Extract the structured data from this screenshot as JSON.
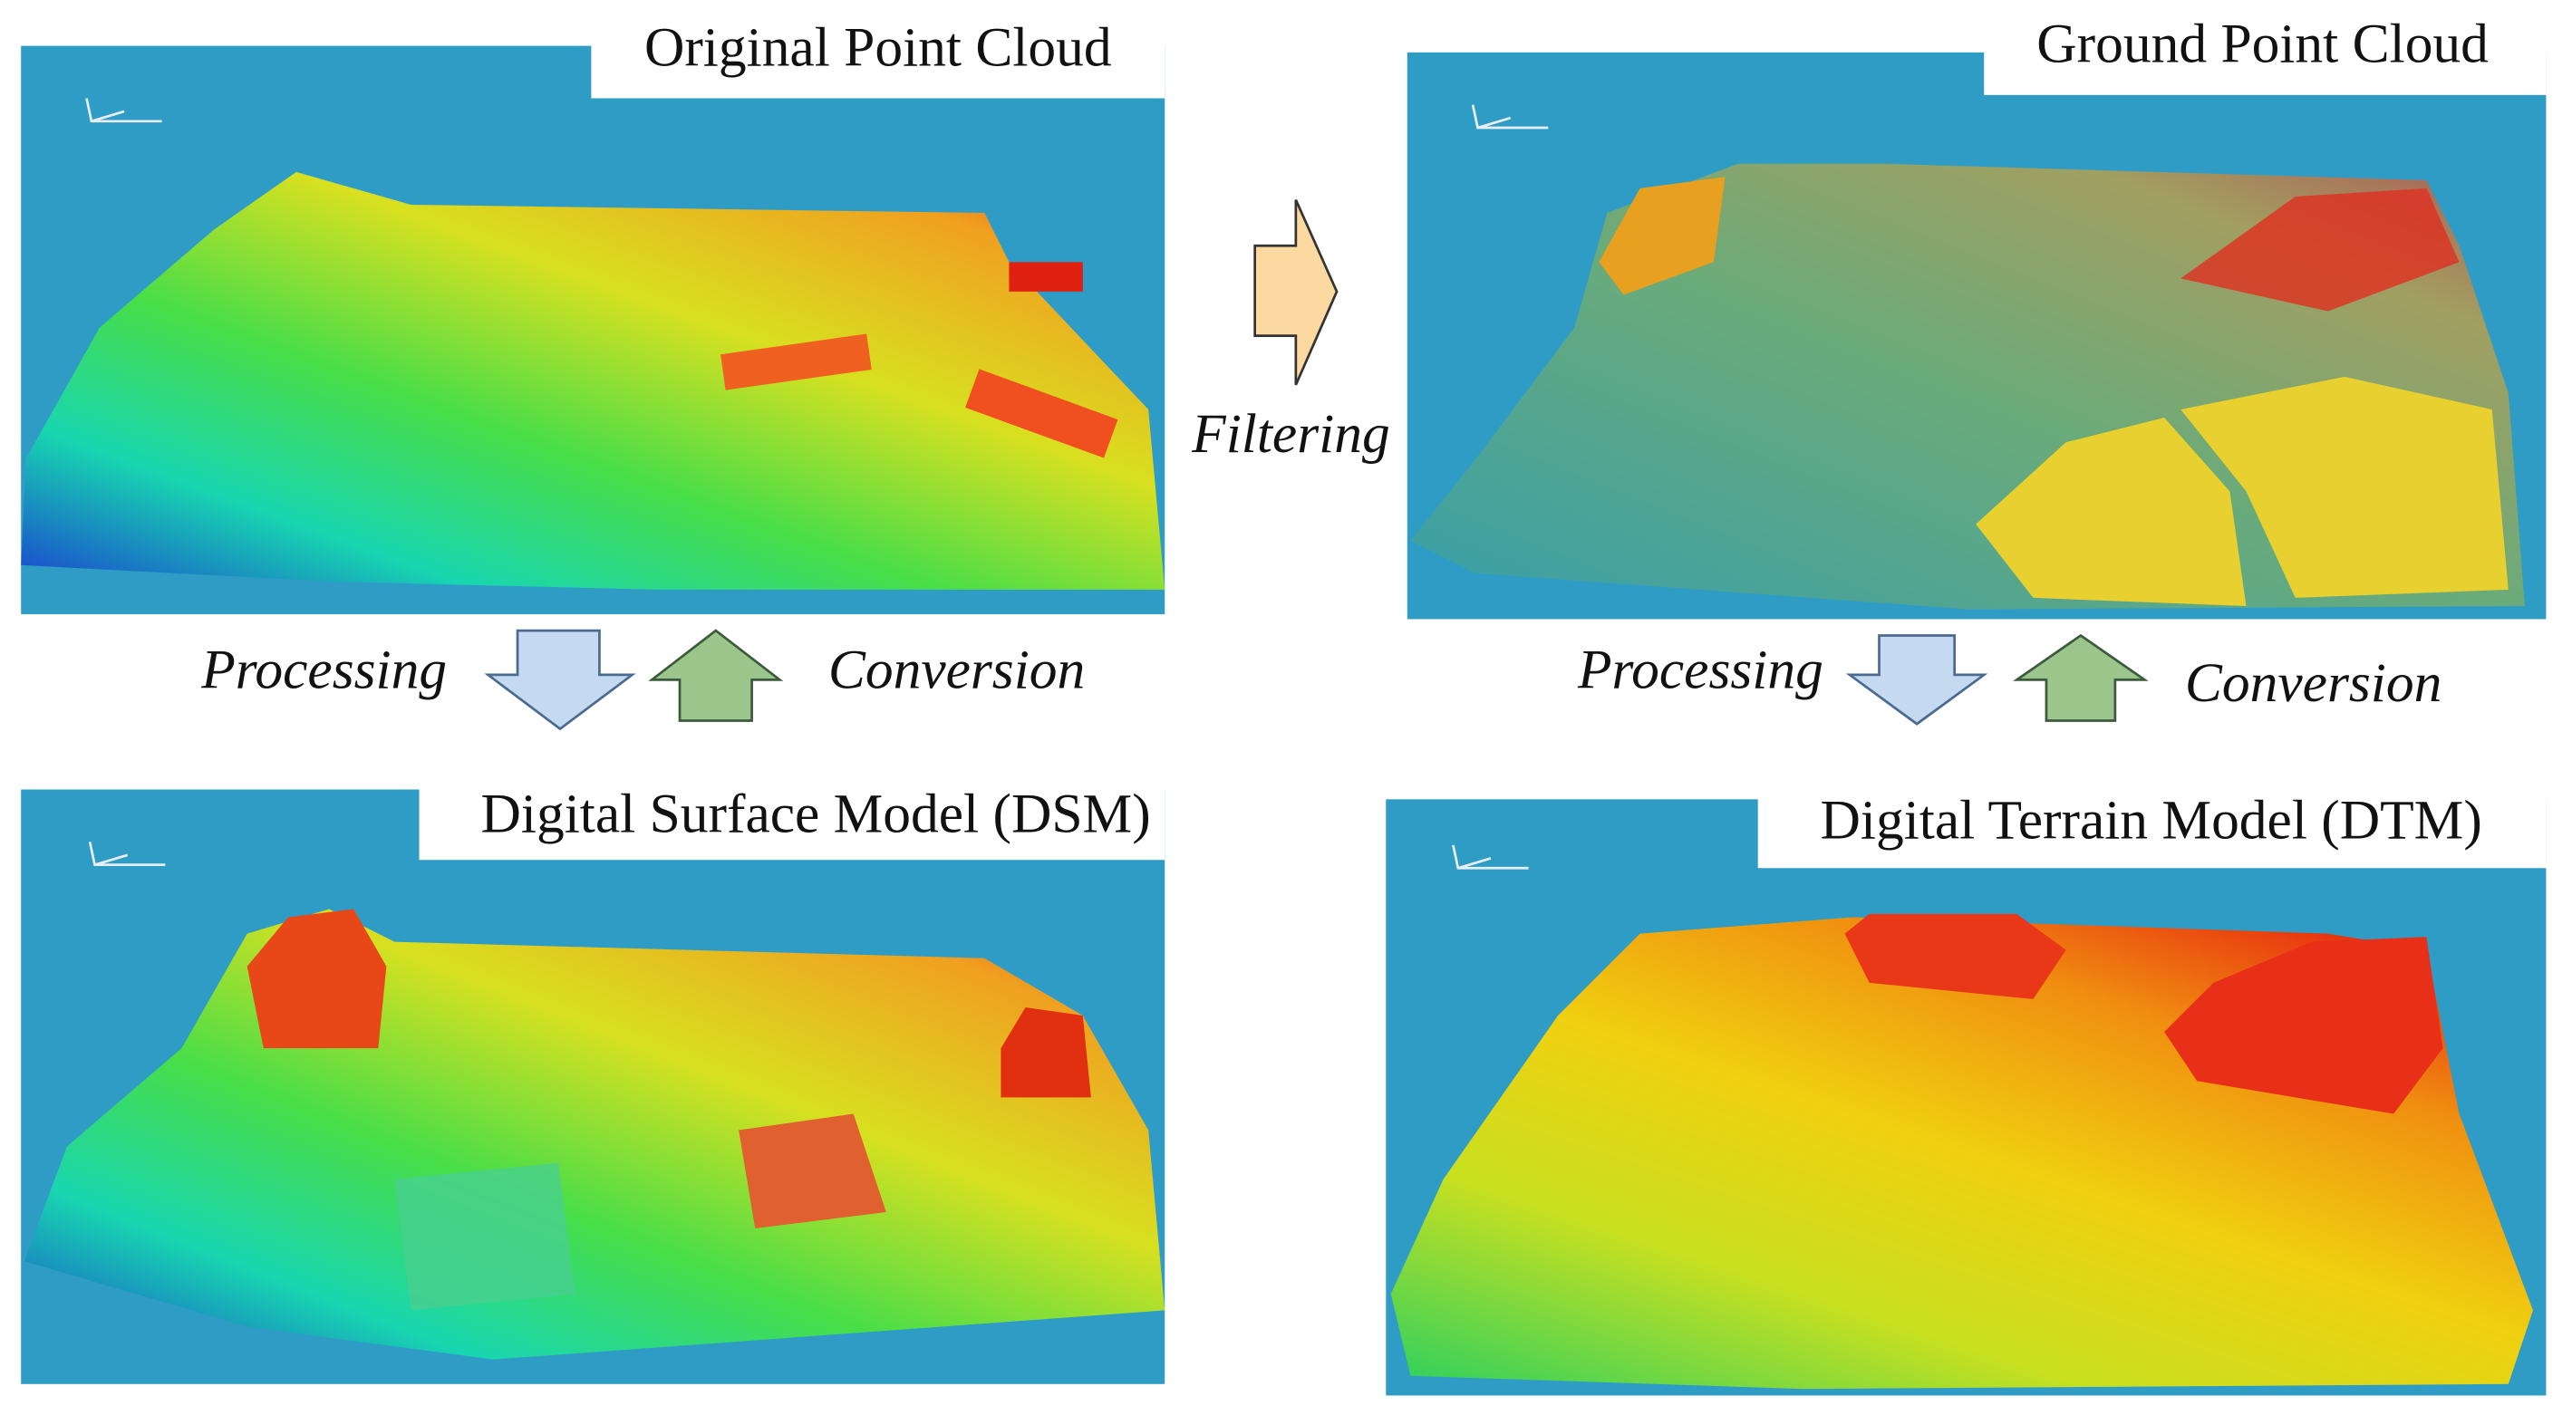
{
  "panels": [
    {
      "title": "Original Point Cloud"
    },
    {
      "title": "Ground Point Cloud"
    },
    {
      "title": "Digital Surface Model (DSM)"
    },
    {
      "title": "Digital Terrain Model (DTM)"
    }
  ],
  "transitions": {
    "filtering": "Filtering",
    "left": {
      "down": "Processing",
      "up": "Conversion"
    },
    "right": {
      "down": "Processing",
      "up": "Conversion"
    }
  }
}
